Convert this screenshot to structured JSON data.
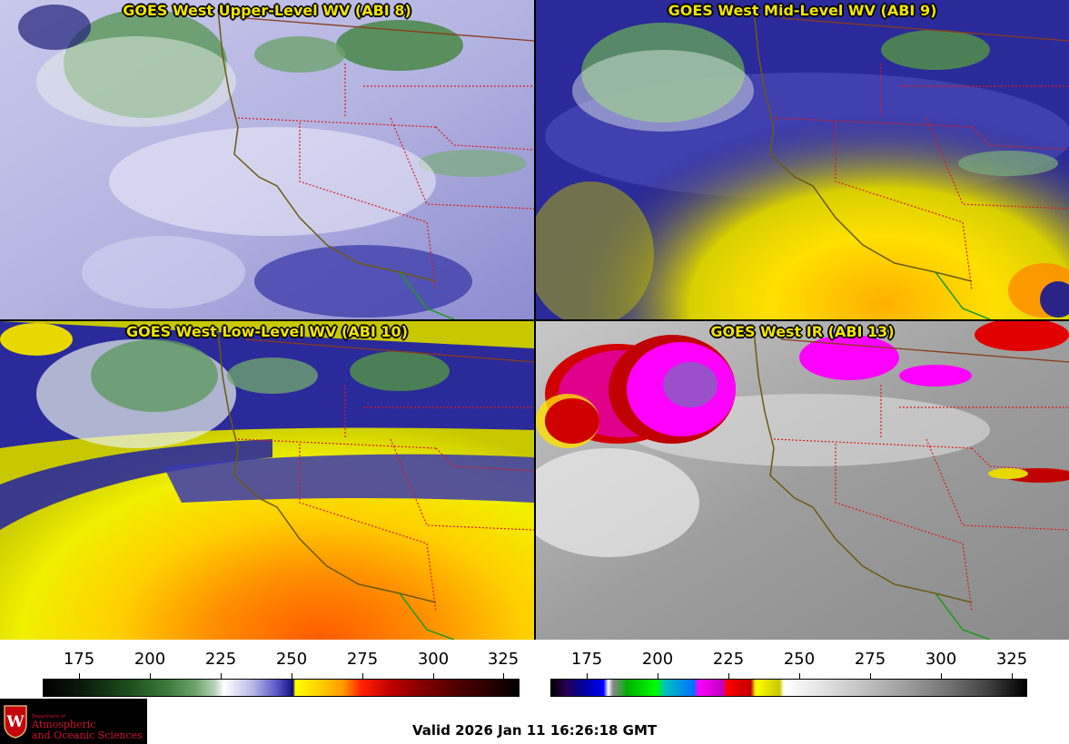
{
  "panels": [
    {
      "title": "GOES West Upper-Level WV (ABI 8)"
    },
    {
      "title": "GOES West Mid-Level WV (ABI 9)"
    },
    {
      "title": "GOES West Low-Level WV (ABI 10)"
    },
    {
      "title": "GOES West IR (ABI 13)"
    }
  ],
  "colorbars": {
    "left_ticks": [
      "175",
      "200",
      "225",
      "250",
      "275",
      "300",
      "325"
    ],
    "right_ticks": [
      "175",
      "200",
      "225",
      "250",
      "275",
      "300",
      "325"
    ],
    "range": [
      162,
      330
    ]
  },
  "footer": {
    "valid_time": "Valid 2026 Jan 11 16:26:18 GMT",
    "logo_dept": "Department of",
    "logo_line1": "Atmospheric",
    "logo_line2": "and Oceanic Sciences",
    "logo_seal_letter": "W"
  },
  "colors": {
    "title": "#f2e400",
    "borders_state": "#e01818",
    "coastline": "#6b5a10",
    "mexico_border": "#1f9a1f"
  }
}
